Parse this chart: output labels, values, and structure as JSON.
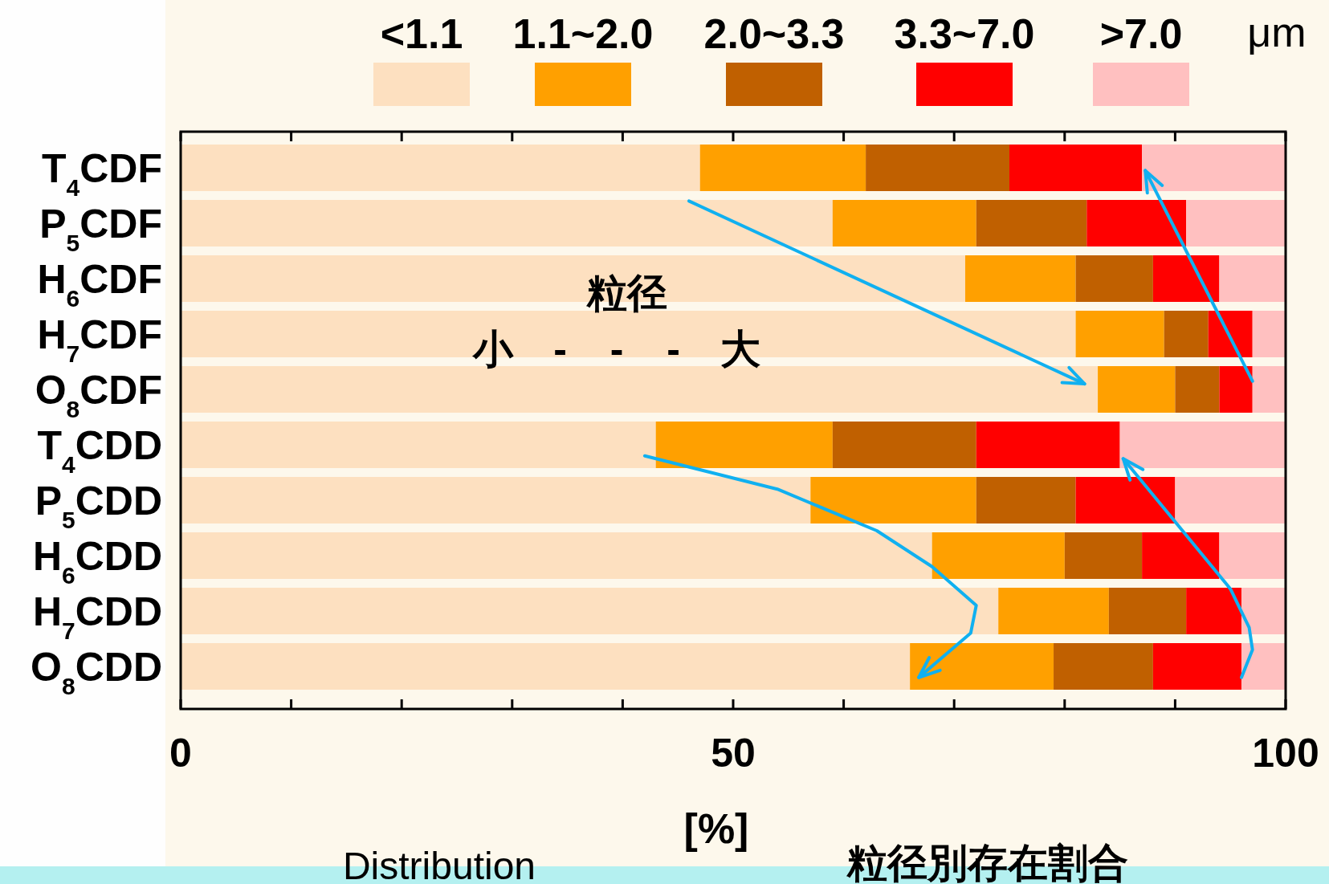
{
  "chart_data": {
    "type": "bar",
    "orientation": "horizontal",
    "stacked": true,
    "categories": [
      "T$_{4}$CDF",
      "P$_{5}$CDF",
      "H$_{6}$CDF",
      "H$_{7}$CDF",
      "O$_{8}$CDF",
      "T$_{4}$CDD",
      "P$_{5}$CDD",
      "H$_{6}$CDD",
      "H$_{7}$CDD",
      "O$_{8}$CDD"
    ],
    "series": [
      {
        "name": "<1.1",
        "color": "#fde0c0",
        "values": [
          47,
          59,
          71,
          81,
          83,
          43,
          57,
          68,
          74,
          66
        ]
      },
      {
        "name": "1.1~2.0",
        "color": "#ffa000",
        "values": [
          15,
          13,
          10,
          8,
          7,
          16,
          15,
          12,
          10,
          13
        ]
      },
      {
        "name": "2.0~3.3",
        "color": "#c06000",
        "values": [
          13,
          10,
          7,
          4,
          4,
          13,
          9,
          7,
          7,
          9
        ]
      },
      {
        "name": "3.3~7.0",
        "color": "#ff0000",
        "values": [
          12,
          9,
          6,
          4,
          3,
          13,
          9,
          7,
          5,
          8
        ]
      },
      {
        "name": ">7.0",
        "color": "#ffc0c0",
        "values": [
          13,
          9,
          6,
          3,
          3,
          15,
          10,
          6,
          4,
          4
        ]
      }
    ],
    "legend": "top",
    "legend_title": "μm",
    "xlim": [
      0,
      100
    ],
    "xticks": [
      0,
      {
        "value": 10,
        "label": null
      },
      {
        "value": 20,
        "label": null
      },
      {
        "value": 30,
        "label": null
      },
      {
        "value": 40,
        "label": null
      },
      50,
      {
        "value": 60,
        "label": null
      },
      {
        "value": 70,
        "label": null
      },
      {
        "value": 80,
        "label": null
      },
      {
        "value": 90,
        "label": null
      },
      100
    ],
    "xlabel": "[%]",
    "annotations": [
      "粒径",
      "小　- - -　大",
      "Distribution",
      "粒径別存在割合"
    ]
  }
}
